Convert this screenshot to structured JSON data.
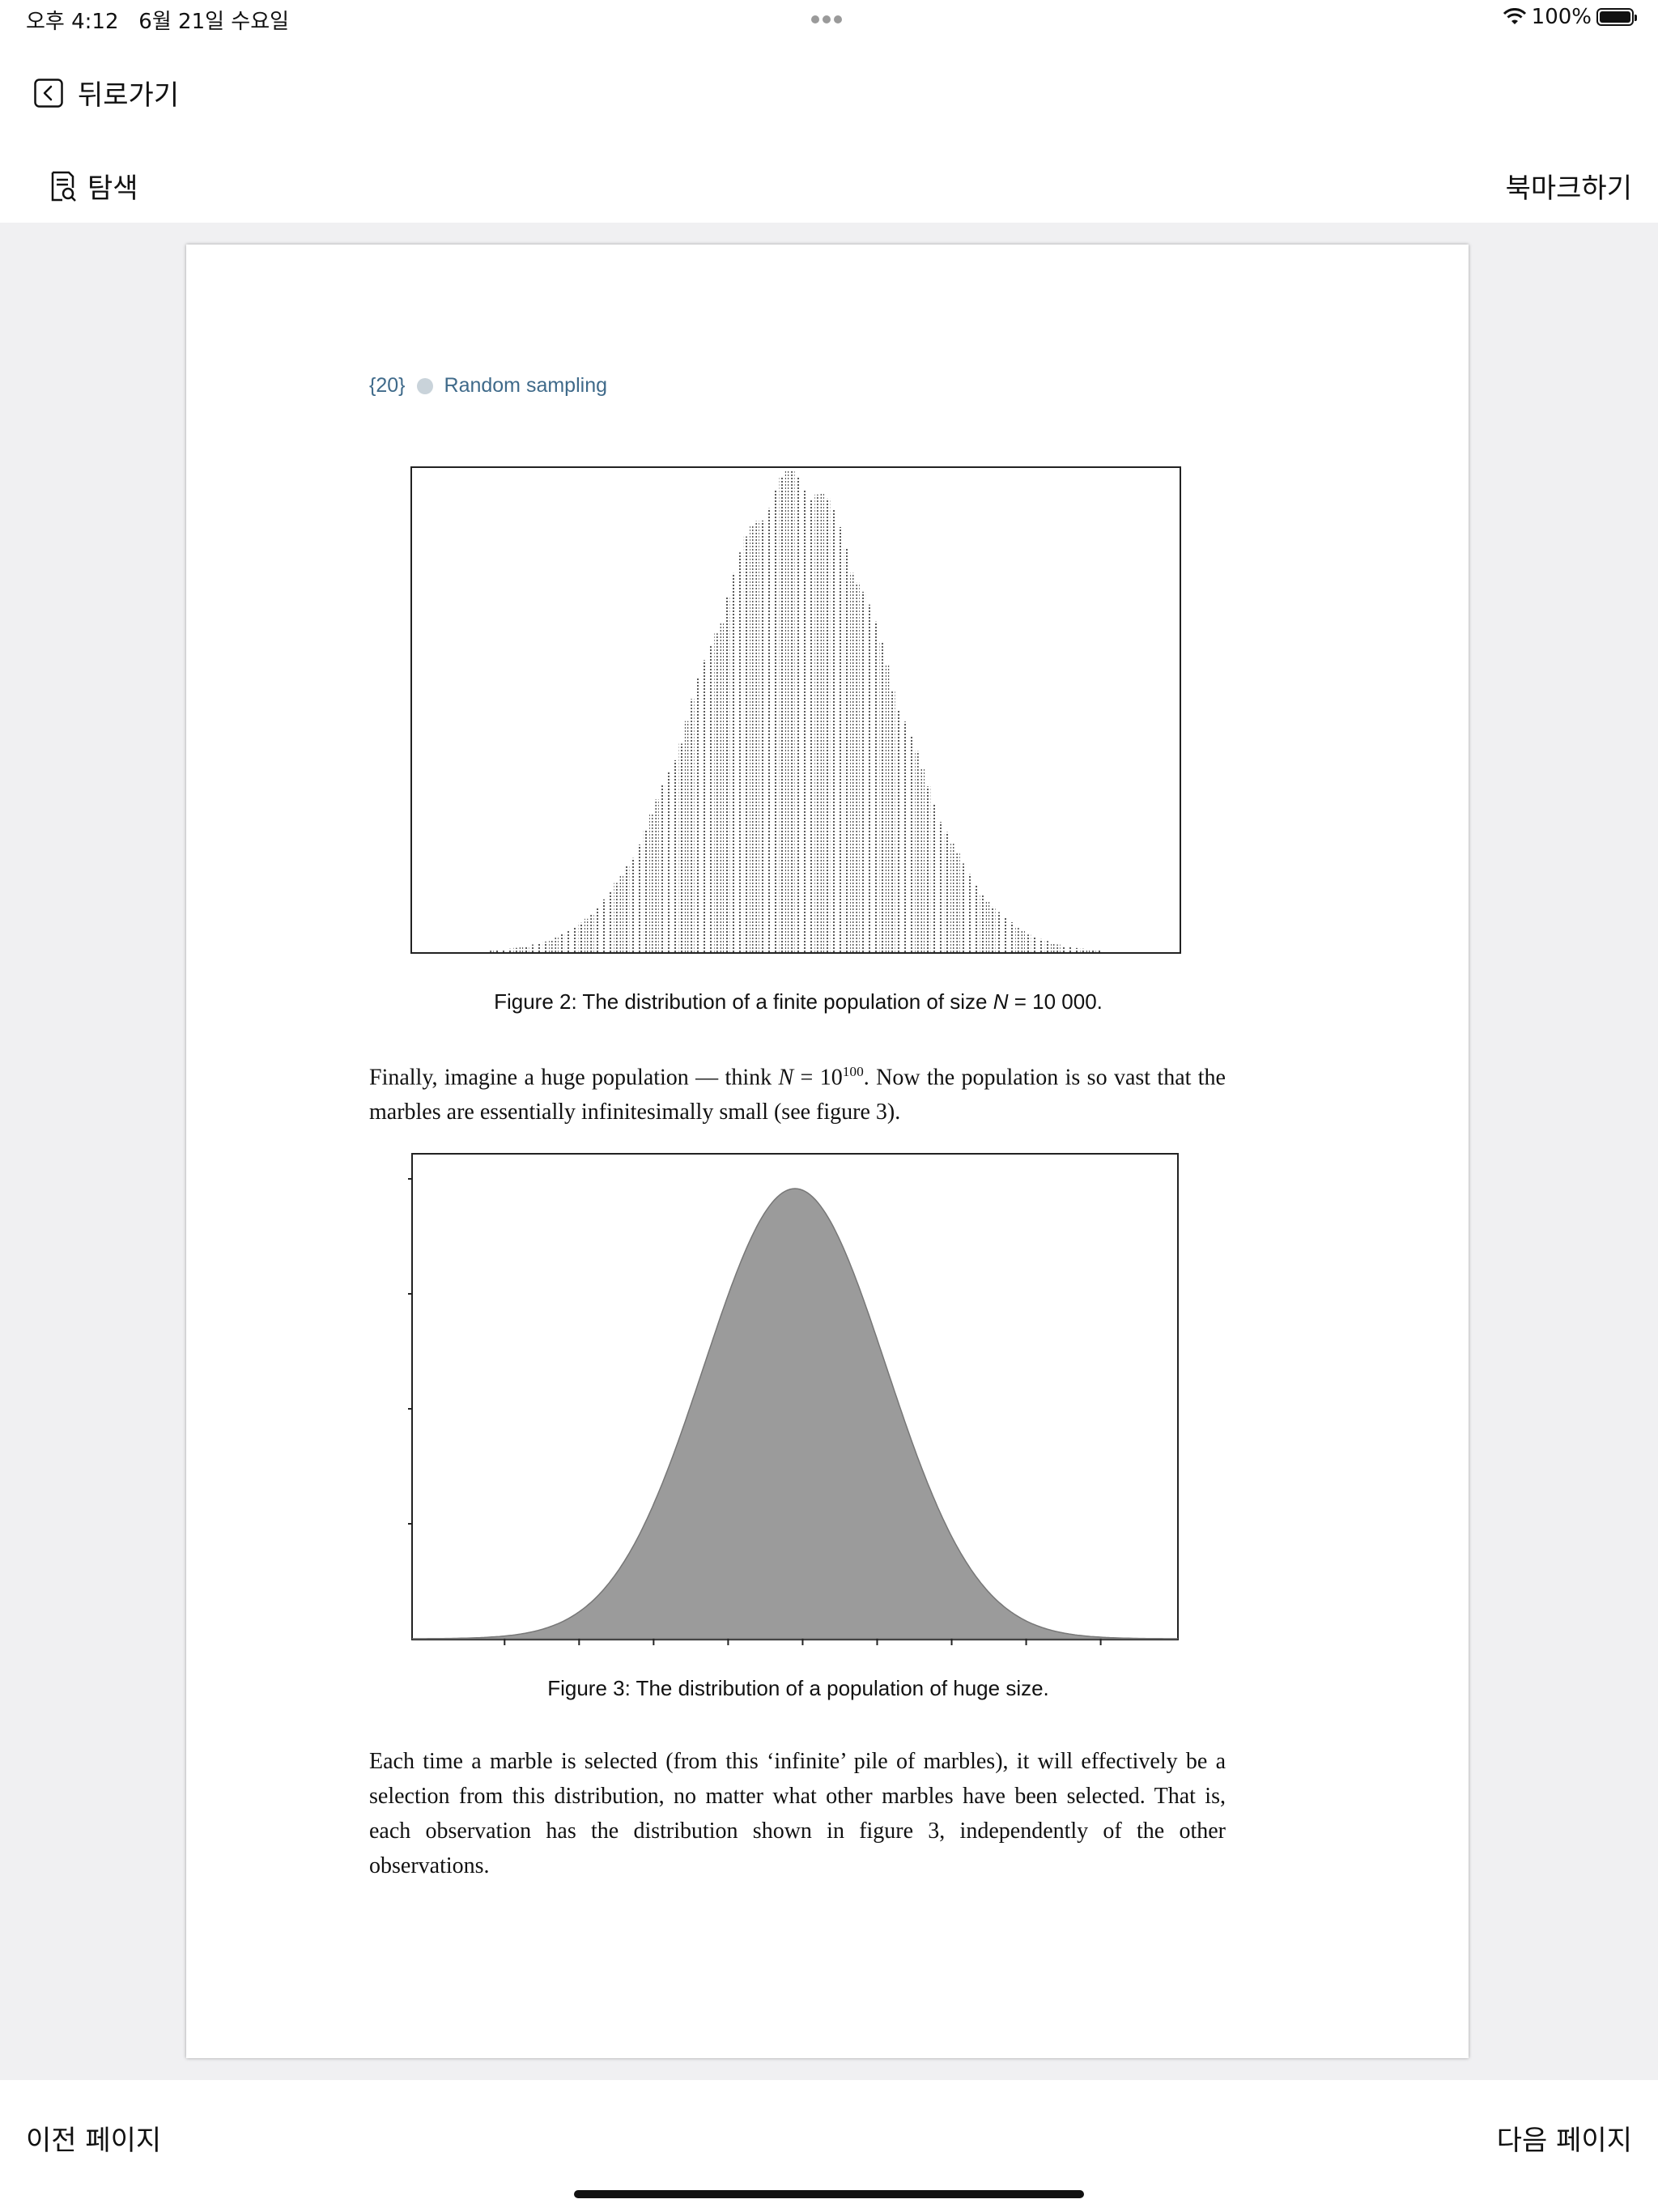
{
  "status_bar": {
    "time": "오후 4:12",
    "date": "6월 21일 수요일",
    "battery": "100%"
  },
  "nav": {
    "back_label": "뒤로가기",
    "search_label": "탐색",
    "bookmark_label": "북마크하기"
  },
  "page": {
    "number": "{20}",
    "section": "Random sampling",
    "caption2": {
      "prefix": "Figure 2:  The distribution of a finite population of size ",
      "var": "N",
      "suffix": " = 10 000."
    },
    "para1": {
      "part1": "Finally, imagine a huge population — think ",
      "var": "N",
      "part2": " = 10",
      "exponent": "100",
      "part3": ". Now the population is so vast that the marbles are essentially infinitesimally small (see figure 3)."
    },
    "caption3": "Figure 3:  The distribution of a population of huge size.",
    "para2": "Each time a marble is selected (from this ‘infinite’ pile of marbles), it will effectively be a selection from this distribution, no matter what other marbles have been selected. That is, each observation has the distribution shown in figure 3, independently of the other observations."
  },
  "footer": {
    "prev_label": "이전 페이지",
    "next_label": "다음 페이지"
  },
  "chart_data": [
    {
      "type": "histogram",
      "title": "Figure 2",
      "description_visible": "dot histogram, roughly normal",
      "mean": 0,
      "sd": 1,
      "xlim": [
        -4.2,
        4.2
      ],
      "x_ticks": 9,
      "n": 10000,
      "fill": "#5a5a5a"
    },
    {
      "type": "area",
      "title": "Figure 3",
      "mean": 0,
      "sd": 1,
      "xlim": [
        -4.2,
        4.2
      ],
      "x_ticks": 9,
      "y_ticks": 4,
      "fill": "#9b9b9b"
    }
  ]
}
